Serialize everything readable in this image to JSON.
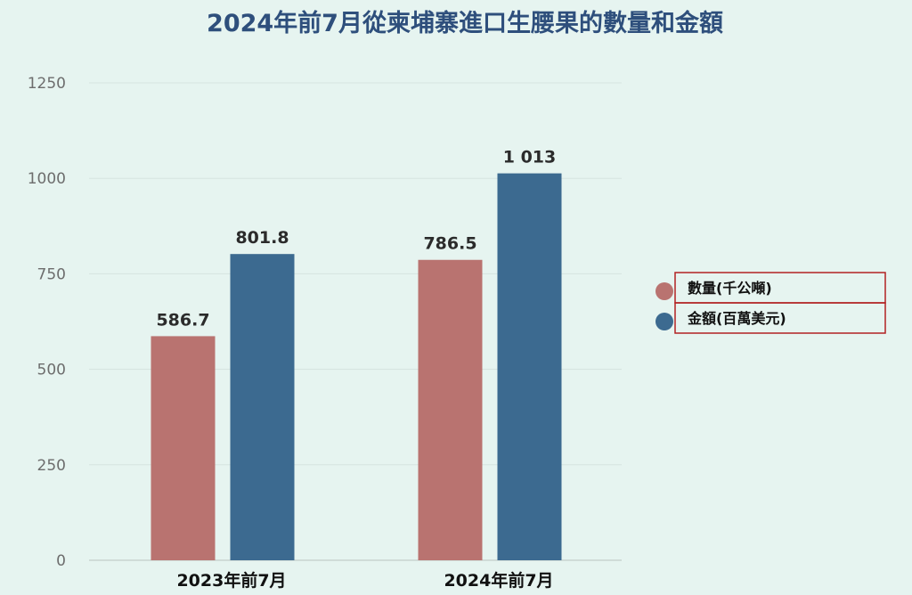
{
  "chart_data": {
    "type": "bar",
    "title": "2024年前7月從柬埔寨進口生腰果的數量和金額",
    "categories": [
      "2023年前7月",
      "2024年前7月"
    ],
    "series": [
      {
        "name": "數量(千公噸)",
        "values": [
          586.7,
          786.5
        ],
        "labels": [
          "586.7",
          "786.5"
        ],
        "color": "#b97370"
      },
      {
        "name": "金額(百萬美元)",
        "values": [
          801.8,
          1013
        ],
        "labels": [
          "801.8",
          "1 013"
        ],
        "color": "#3c6a90"
      }
    ],
    "yticks": [
      "0",
      "250",
      "500",
      "750",
      "1000",
      "1250"
    ],
    "ylim": [
      0,
      1250
    ],
    "grid": true,
    "legend_position": "right",
    "legend_border_color": "#b22222"
  }
}
